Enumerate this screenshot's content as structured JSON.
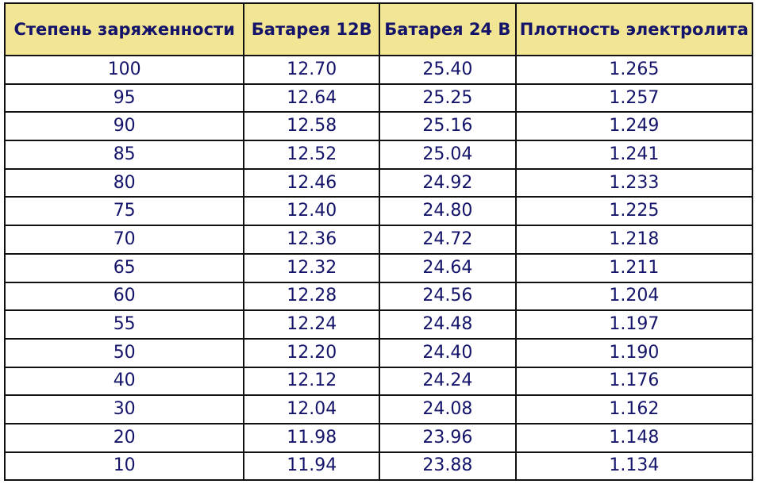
{
  "chart_data": {
    "type": "table",
    "columns": [
      "Степень заряженности",
      "Батарея 12В",
      "Батарея 24 В",
      "Плотность электролита"
    ],
    "header_color": "#f2e593",
    "text_color": "#14146a",
    "rows": [
      [
        "100",
        "12.70",
        "25.40",
        "1.265"
      ],
      [
        "95",
        "12.64",
        "25.25",
        "1.257"
      ],
      [
        "90",
        "12.58",
        "25.16",
        "1.249"
      ],
      [
        "85",
        "12.52",
        "25.04",
        "1.241"
      ],
      [
        "80",
        "12.46",
        "24.92",
        "1.233"
      ],
      [
        "75",
        "12.40",
        "24.80",
        "1.225"
      ],
      [
        "70",
        "12.36",
        "24.72",
        "1.218"
      ],
      [
        "65",
        "12.32",
        "24.64",
        "1.211"
      ],
      [
        "60",
        "12.28",
        "24.56",
        "1.204"
      ],
      [
        "55",
        "12.24",
        "24.48",
        "1.197"
      ],
      [
        "50",
        "12.20",
        "24.40",
        "1.190"
      ],
      [
        "40",
        "12.12",
        "24.24",
        "1.176"
      ],
      [
        "30",
        "12.04",
        "24.08",
        "1.162"
      ],
      [
        "20",
        "11.98",
        "23.96",
        "1.148"
      ],
      [
        "10",
        "11.94",
        "23.88",
        "1.134"
      ]
    ]
  }
}
